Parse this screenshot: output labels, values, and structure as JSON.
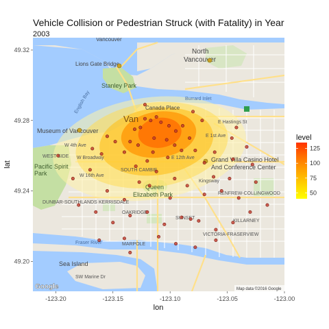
{
  "chart_data": {
    "type": "heatmap",
    "title": "Vehicle Collision or Pedestrian Struck (with Fatality) in Year",
    "subtitle": "2003",
    "xlabel": "lon",
    "ylabel": "lat",
    "xlim": [
      -123.22,
      -123.0
    ],
    "ylim": [
      49.183,
      49.327
    ],
    "x_ticks": [
      -123.2,
      -123.15,
      -123.1,
      -123.05,
      -123.0
    ],
    "x_tick_labels": [
      "-123.20",
      "-123.15",
      "-123.10",
      "-123.05",
      "-123.00"
    ],
    "y_ticks": [
      49.2,
      49.24,
      49.28,
      49.32
    ],
    "y_tick_labels": [
      "49.20",
      "49.24",
      "49.28",
      "49.32"
    ],
    "grid": false,
    "basemap": "Google roadmap of Vancouver",
    "legend": {
      "title": "level",
      "position": "right",
      "range": [
        40,
        135
      ],
      "ticks": [
        50,
        75,
        100,
        125
      ],
      "tick_labels": [
        "50",
        "75",
        "100",
        "125"
      ],
      "colors": [
        "#ffff00",
        "#ffd300",
        "#ffa500",
        "#ff7000",
        "#ff3300"
      ]
    },
    "density_levels": [
      {
        "level": 25,
        "color": "#fff3a8",
        "opacity": 0.55,
        "cx": -123.118,
        "cy": 49.264,
        "rx": 0.085,
        "ry": 0.029
      },
      {
        "level": 50,
        "color": "#ffdd55",
        "opacity": 0.55,
        "cx": -123.116,
        "cy": 49.266,
        "rx": 0.067,
        "ry": 0.024
      },
      {
        "level": 75,
        "color": "#ffbf1a",
        "opacity": 0.6,
        "cx": -123.112,
        "cy": 49.268,
        "rx": 0.05,
        "ry": 0.019
      },
      {
        "level": 100,
        "color": "#ff9200",
        "opacity": 0.7,
        "cx": -123.11,
        "cy": 49.272,
        "rx": 0.033,
        "ry": 0.013
      },
      {
        "level": 125,
        "color": "#ff6a00",
        "opacity": 0.75,
        "cx": -123.109,
        "cy": 49.273,
        "rx": 0.019,
        "ry": 0.0085
      }
    ],
    "points": [
      {
        "x": -123.122,
        "y": 49.281
      },
      {
        "x": -123.117,
        "y": 49.28
      },
      {
        "x": -123.112,
        "y": 49.282
      },
      {
        "x": -123.108,
        "y": 49.279
      },
      {
        "x": -123.101,
        "y": 49.277
      },
      {
        "x": -123.126,
        "y": 49.276
      },
      {
        "x": -123.095,
        "y": 49.274
      },
      {
        "x": -123.089,
        "y": 49.277
      },
      {
        "x": -123.131,
        "y": 49.275
      },
      {
        "x": -123.135,
        "y": 49.268
      },
      {
        "x": -123.128,
        "y": 49.266
      },
      {
        "x": -123.114,
        "y": 49.27
      },
      {
        "x": -123.103,
        "y": 49.269
      },
      {
        "x": -123.096,
        "y": 49.266
      },
      {
        "x": -123.083,
        "y": 49.27
      },
      {
        "x": -123.078,
        "y": 49.263
      },
      {
        "x": -123.148,
        "y": 49.268
      },
      {
        "x": -123.16,
        "y": 49.261
      },
      {
        "x": -123.14,
        "y": 49.262
      },
      {
        "x": -123.115,
        "y": 49.262
      },
      {
        "x": -123.102,
        "y": 49.259
      },
      {
        "x": -123.09,
        "y": 49.263
      },
      {
        "x": -123.155,
        "y": 49.271
      },
      {
        "x": -123.168,
        "y": 49.264
      },
      {
        "x": -123.12,
        "y": 49.257
      },
      {
        "x": -123.13,
        "y": 49.254
      },
      {
        "x": -123.07,
        "y": 49.256
      },
      {
        "x": -123.061,
        "y": 49.262
      },
      {
        "x": -123.045,
        "y": 49.258
      },
      {
        "x": -123.033,
        "y": 49.265
      },
      {
        "x": -123.028,
        "y": 49.255
      },
      {
        "x": -123.17,
        "y": 49.252
      },
      {
        "x": -123.185,
        "y": 49.247
      },
      {
        "x": -123.198,
        "y": 49.26
      },
      {
        "x": -123.155,
        "y": 49.24
      },
      {
        "x": -123.14,
        "y": 49.235
      },
      {
        "x": -123.118,
        "y": 49.243
      },
      {
        "x": -123.1,
        "y": 49.236
      },
      {
        "x": -123.085,
        "y": 49.243
      },
      {
        "x": -123.07,
        "y": 49.238
      },
      {
        "x": -123.055,
        "y": 49.24
      },
      {
        "x": -123.04,
        "y": 49.236
      },
      {
        "x": -123.025,
        "y": 49.245
      },
      {
        "x": -123.062,
        "y": 49.248
      },
      {
        "x": -123.048,
        "y": 49.247
      },
      {
        "x": -123.18,
        "y": 49.232
      },
      {
        "x": -123.165,
        "y": 49.228
      },
      {
        "x": -123.15,
        "y": 49.222
      },
      {
        "x": -123.135,
        "y": 49.226
      },
      {
        "x": -123.12,
        "y": 49.228
      },
      {
        "x": -123.105,
        "y": 49.221
      },
      {
        "x": -123.09,
        "y": 49.225
      },
      {
        "x": -123.075,
        "y": 49.223
      },
      {
        "x": -123.06,
        "y": 49.218
      },
      {
        "x": -123.045,
        "y": 49.222
      },
      {
        "x": -123.03,
        "y": 49.228
      },
      {
        "x": -123.015,
        "y": 49.232
      },
      {
        "x": -123.162,
        "y": 49.212
      },
      {
        "x": -123.14,
        "y": 49.213
      },
      {
        "x": -123.11,
        "y": 49.214
      },
      {
        "x": -123.095,
        "y": 49.21
      },
      {
        "x": -123.078,
        "y": 49.208
      },
      {
        "x": -123.06,
        "y": 49.212
      },
      {
        "x": -123.135,
        "y": 49.205
      },
      {
        "x": -123.082,
        "y": 49.224
      },
      {
        "x": -123.096,
        "y": 49.247
      },
      {
        "x": -123.112,
        "y": 49.251
      },
      {
        "x": -123.127,
        "y": 49.245
      },
      {
        "x": -123.046,
        "y": 49.27
      },
      {
        "x": -123.042,
        "y": 49.276
      },
      {
        "x": -123.072,
        "y": 49.28
      },
      {
        "x": -123.08,
        "y": 49.285
      },
      {
        "x": -123.122,
        "y": 49.289
      }
    ]
  },
  "map": {
    "labels": {
      "vancouver_north": "Vancouver",
      "north": "North",
      "north_van": "Vancouver",
      "lions_gate": "Lions Gate Bridge",
      "stanley_park": "Stanley Park",
      "canada_place": "Canada Place",
      "museum": "Museum of Vancouver",
      "van_center": "Van",
      "west_4th": "W 4th Ave",
      "broadway": "W Broadway",
      "w16": "W 16th Ave",
      "queen_e": "Queen",
      "queen_e2": "Elizabeth Park",
      "kerrisdale": "KERRISDALE",
      "west_side": "WEST SIDE",
      "south_cambie": "SOUTH CAMBIE",
      "grand_villa": "Grand Villa Casino Hotel",
      "grand_villa2": "And Conference Center",
      "renfrew": "RENFREW-COLLINGWOOD",
      "killarney": "KILLARNEY",
      "marpole": "MARPOLE",
      "sea_island": "Sea Island",
      "fraser": "Fraser River",
      "pacific_spirit": "Pacific Spirit",
      "pacific_spirit2": "Park",
      "dunbar": "DUNBAR-SOUTHLANDS",
      "sw_marine": "SW Marine Dr",
      "e_hastings": "E Hastings St",
      "kingsway": "Kingsway",
      "oakridge": "OAKRIDGE",
      "sunset": "SUNSET",
      "victoria": "VICTORIA-FRASERVIEW",
      "mt_pleasant": "E 12th Ave",
      "grandview": "E 1st Ave",
      "burrard": "Burrard Inlet",
      "english_bay": "English Bay"
    },
    "google": "Google",
    "attribution": "Map data ©2016 Google"
  },
  "colors": {
    "water": "#a3ccff",
    "land": "#ebe7de",
    "park": "#c4dfa3",
    "road_major": "#ffe08a",
    "road_minor": "#ffffff",
    "point_fill": "#c0392b",
    "point_stroke": "#7a1a10"
  }
}
